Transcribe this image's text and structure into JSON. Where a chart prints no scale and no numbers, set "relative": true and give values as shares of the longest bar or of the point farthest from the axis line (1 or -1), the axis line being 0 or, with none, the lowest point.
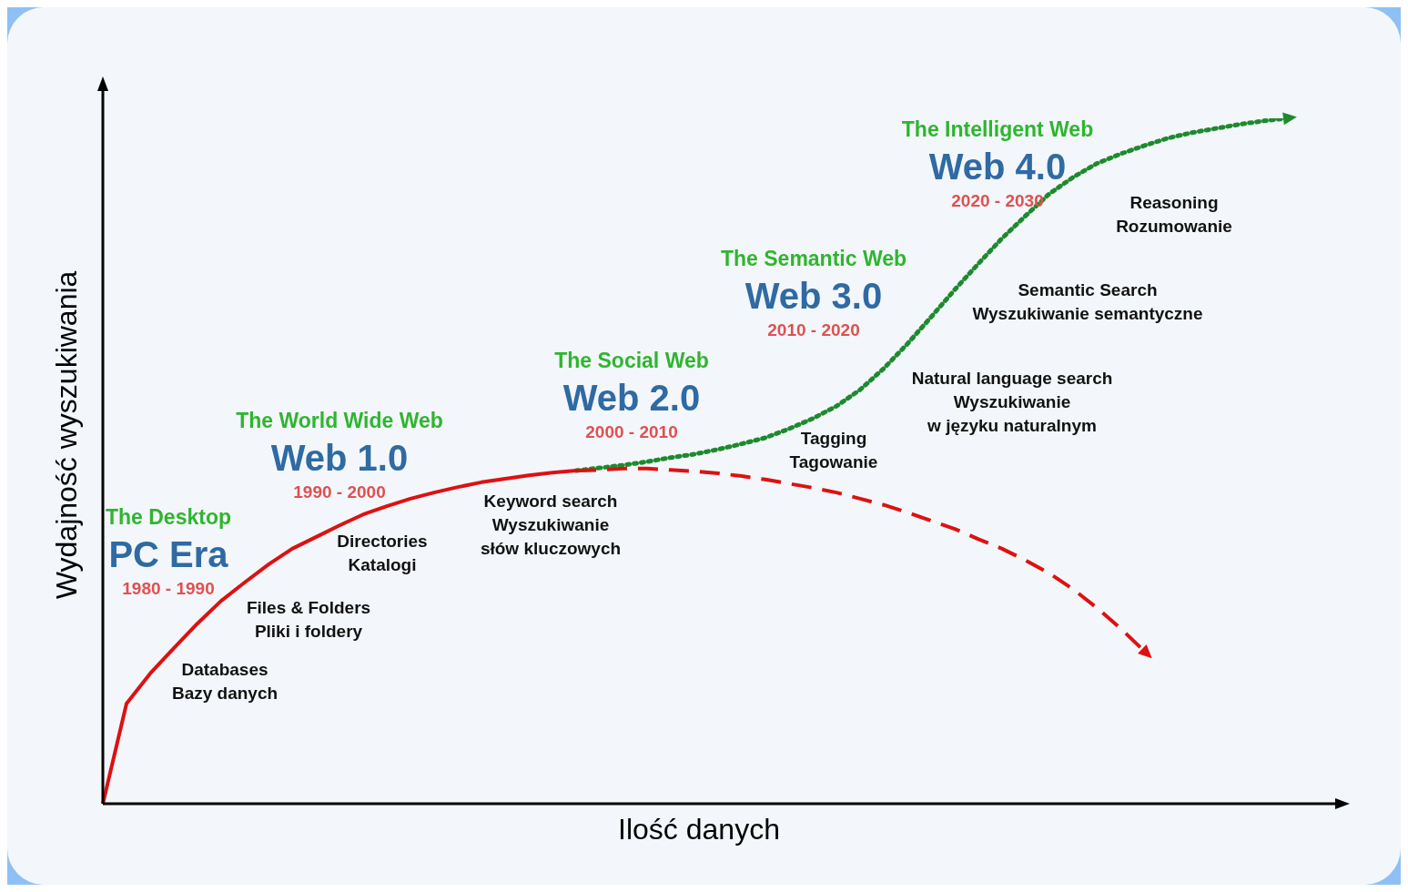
{
  "chart_data": {
    "type": "line",
    "relative": true,
    "xlabel": "Ilość danych",
    "ylabel": "Wydajność wyszukiwania",
    "legend": false,
    "marker": "none",
    "categories": [
      null,
      null,
      null,
      null,
      null,
      null,
      null,
      null,
      null,
      null,
      null,
      null,
      null,
      null,
      null,
      null,
      null,
      null,
      null,
      null,
      null,
      null,
      null,
      null,
      null,
      null,
      null,
      null,
      null,
      null,
      null,
      null,
      null,
      null,
      null,
      null,
      null,
      null,
      null,
      null,
      null,
      null,
      null,
      null,
      null,
      null,
      null,
      null,
      null,
      null,
      null,
      null,
      null
    ],
    "series": [
      {
        "color": "#dd1111",
        "line_style": "solid",
        "values": [
          0,
          0.146,
          0.19,
          0.227,
          0.263,
          0.296,
          0.323,
          0.349,
          0.372,
          0.389,
          0.406,
          0.422,
          0.434,
          0.445,
          0.454,
          0.462,
          0.469,
          0.474,
          0.479,
          0.483,
          0.486,
          null,
          null,
          null,
          null,
          null,
          null,
          null,
          null,
          null,
          null,
          null,
          null,
          null,
          null,
          null,
          null,
          null,
          null,
          null,
          null,
          null,
          null,
          null,
          null,
          null,
          null,
          null,
          null,
          null,
          null,
          null,
          null
        ]
      },
      {
        "color": "#dd1111",
        "line_style": "dashed",
        "values": [
          null,
          null,
          null,
          null,
          null,
          null,
          null,
          null,
          null,
          null,
          null,
          null,
          null,
          null,
          null,
          null,
          null,
          null,
          null,
          null,
          0.486,
          0.487,
          0.489,
          0.489,
          0.487,
          0.485,
          0.482,
          0.478,
          0.473,
          0.467,
          0.461,
          0.454,
          0.445,
          0.436,
          0.425,
          0.413,
          0.401,
          0.386,
          0.372,
          0.355,
          0.336,
          0.313,
          0.286,
          0.256,
          0.223,
          null,
          null,
          null,
          null,
          null,
          null,
          null,
          null
        ]
      },
      {
        "color": "#1e8a2e",
        "line_style": "dotted",
        "values": [
          null,
          null,
          null,
          null,
          null,
          null,
          null,
          null,
          null,
          null,
          null,
          null,
          null,
          null,
          null,
          null,
          null,
          null,
          null,
          null,
          0.486,
          0.49,
          0.494,
          0.499,
          0.505,
          0.51,
          0.517,
          0.525,
          0.534,
          0.547,
          0.562,
          0.58,
          0.604,
          0.635,
          0.671,
          0.71,
          0.75,
          0.788,
          0.825,
          0.858,
          0.89,
          0.914,
          0.934,
          0.948,
          0.96,
          0.971,
          0.979,
          0.985,
          0.991,
          0.996,
          1,
          null,
          null
        ]
      }
    ],
    "annotations": [
      "The Desktop\nPC Era\n1980 - 1990",
      "The World Wide Web\nWeb 1.0\n1990 - 2000",
      "The Social Web\nWeb 2.0\n2000 - 2010",
      "The Semantic Web\nWeb 3.0\n2010 - 2020",
      "The Intelligent Web\nWeb 4.0\n2020 - 2030",
      "Databases\nBazy danych",
      "Files & Folders\nPliki i foldery",
      "Directories\nKatalogi",
      "Keyword search\nWyszukiwanie\nsłów kluczowych",
      "Tagging\nTagowanie",
      "Natural language search\nWyszukiwanie\nw języku naturalnym",
      "Semantic Search\nWyszukiwanie semantyczne",
      "Reasoning\nRozumowanie"
    ]
  }
}
